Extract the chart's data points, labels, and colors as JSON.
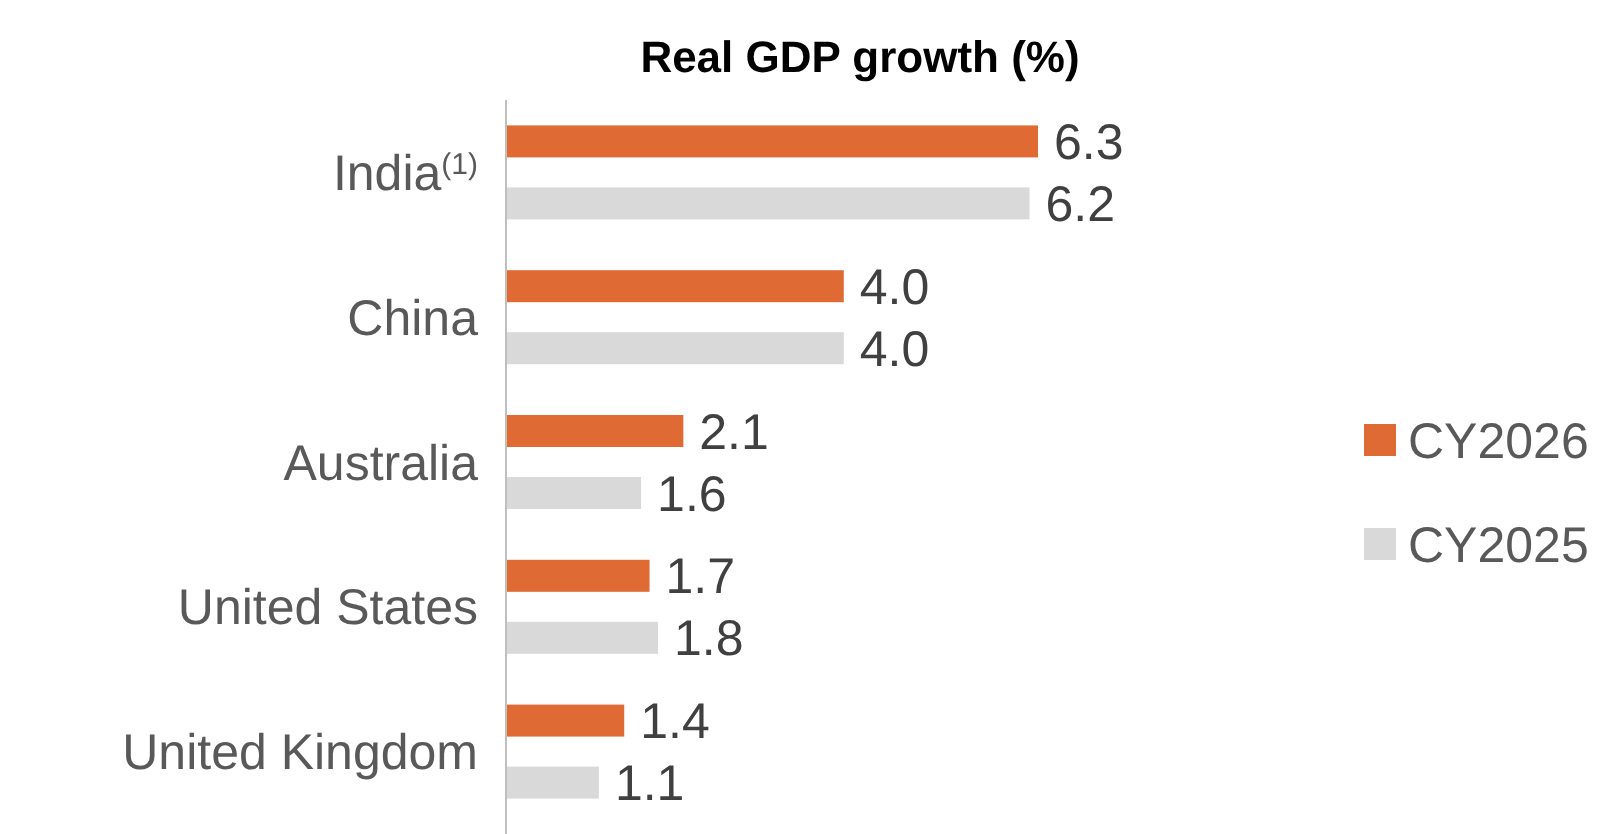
{
  "chart_data": {
    "type": "bar",
    "orientation": "horizontal",
    "title": "Real GDP growth (%)",
    "categories": [
      "India$^{(1)}$",
      "China",
      "Australia",
      "United States",
      "United Kingdom"
    ],
    "series": [
      {
        "name": "CY2026",
        "color": "#e06a34",
        "values": [
          6.3,
          4.0,
          2.1,
          1.7,
          1.4
        ],
        "value_labels": [
          "6.3",
          "4.0",
          "2.1",
          "1.7",
          "1.4"
        ]
      },
      {
        "name": "CY2025",
        "color": "#d9d9d9",
        "values": [
          6.2,
          4.0,
          1.6,
          1.8,
          1.1
        ],
        "value_labels": [
          "6.2",
          "4.0",
          "1.6",
          "1.8",
          "1.1"
        ]
      }
    ],
    "legend": "right"
  }
}
